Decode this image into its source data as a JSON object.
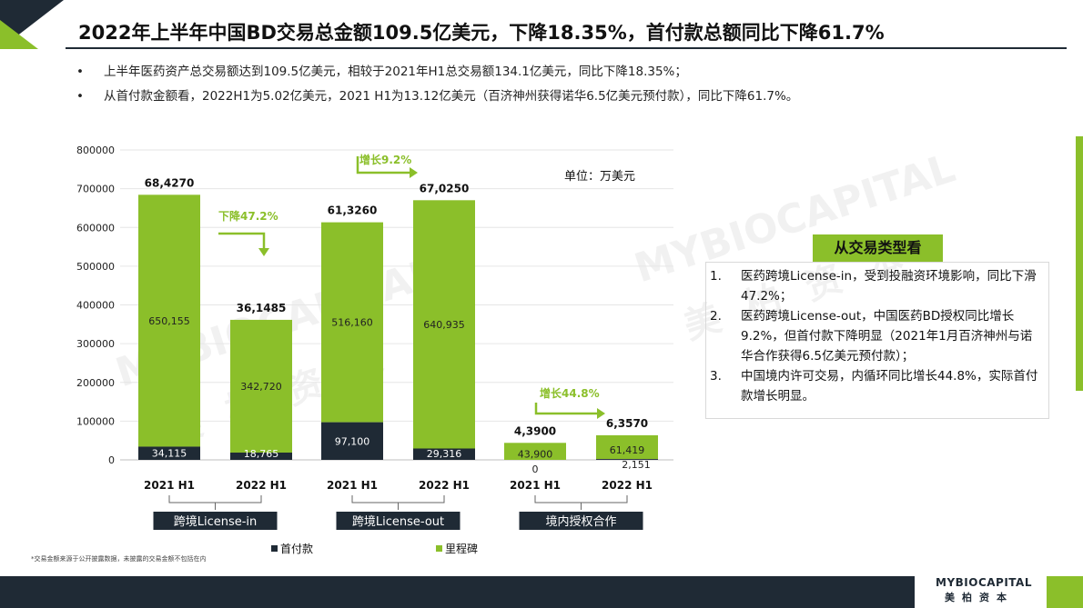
{
  "title": "2022年上半年中国BD交易总金额109.5亿美元，下降18.35%，首付款总额同比下降61.7%",
  "bullets": [
    "上半年医药资产总交易额达到109.5亿美元，相较于2021年H1总交易额134.1亿美元，同比下降18.35%；",
    "从首付款金额看，2022H1为5.02亿美元，2021 H1为13.12亿美元（百济神州获得诺华6.5亿美元预付款），同比下降61.7%。"
  ],
  "bullet_marker": "•",
  "unit_label": "单位：万美元",
  "side_panel": {
    "title": "从交易类型看",
    "items": [
      {
        "num": "1.",
        "text": "医药跨境License-in，受到投融资环境影响，同比下滑47.2%；"
      },
      {
        "num": "2.",
        "text": "医药跨境License-out，中国医药BD授权同比增长9.2%，但首付款下降明显（2021年1月百济神州与诺华合作获得6.5亿美元预付款）；"
      },
      {
        "num": "3.",
        "text": "中国境内许可交易，内循环同比增长44.8%，实际首付款增长明显。"
      }
    ]
  },
  "footnote": "*交易金额来源于公开披露数据，未披露的交易金额不包括在内",
  "logo": {
    "en": "MYBIOCAPITAL",
    "cn": "美柏资本"
  },
  "watermark": {
    "en": "MYBIOCAPITAL",
    "cn": "美柏资本"
  },
  "colors": {
    "dark": "#1f2a35",
    "green": "#8bbf2a"
  },
  "chart_data": {
    "type": "bar",
    "stacked": true,
    "categories": [
      "2021 H1",
      "2022 H1",
      "2021 H1",
      "2022 H1",
      "2021 H1",
      "2022 H1"
    ],
    "groups": [
      {
        "label": "跨境License-in",
        "change": "下降47.2%"
      },
      {
        "label": "跨境License-out",
        "change": "增长9.2%"
      },
      {
        "label": "境内授权合作",
        "change": "增长44.8%"
      }
    ],
    "series": [
      {
        "name": "首付款",
        "color": "#1f2a35",
        "values": [
          34115,
          18765,
          97100,
          29316,
          0,
          2151
        ],
        "labels": [
          "34,115",
          "18,765",
          "97,100",
          "29,316",
          "0",
          "2,151"
        ]
      },
      {
        "name": "里程碑",
        "color": "#8bbf2a",
        "values": [
          650155,
          342720,
          516160,
          640935,
          43900,
          61419
        ],
        "labels": [
          "650,155",
          "342,720",
          "516,160",
          "640,935",
          "43,900",
          "61,419"
        ]
      }
    ],
    "totals": [
      "68,4270",
      "36,1485",
      "61,3260",
      "67,0250",
      "4,3900",
      "6,3570"
    ],
    "y_ticks": [
      "0",
      "100000",
      "200000",
      "300000",
      "400000",
      "500000",
      "600000",
      "700000",
      "800000"
    ],
    "ylim": [
      0,
      800000
    ],
    "legend_position": "bottom"
  }
}
